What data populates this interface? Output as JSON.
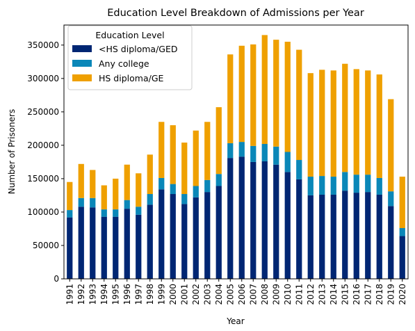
{
  "chart_data": {
    "type": "bar",
    "stacked": true,
    "title": "Education Level Breakdown of Admissions per Year",
    "xlabel": "Year",
    "ylabel": "Number of Prisoners",
    "ylim": [
      0,
      380000
    ],
    "yticks": [
      0,
      50000,
      100000,
      150000,
      200000,
      250000,
      300000,
      350000
    ],
    "legend_title": "Education Level",
    "legend_position": "top-left",
    "categories": [
      "1991",
      "1992",
      "1993",
      "1994",
      "1995",
      "1996",
      "1997",
      "1998",
      "1999",
      "2000",
      "2001",
      "2002",
      "2003",
      "2004",
      "2005",
      "2006",
      "2007",
      "2008",
      "2009",
      "2010",
      "2011",
      "2012",
      "2013",
      "2014",
      "2015",
      "2016",
      "2017",
      "2018",
      "2019",
      "2020"
    ],
    "series": [
      {
        "name": "<HS diploma/GED",
        "color": "#002673",
        "values": [
          92000,
          108000,
          107000,
          93000,
          93000,
          105000,
          96000,
          111000,
          134000,
          127000,
          112000,
          122000,
          130000,
          139000,
          181000,
          183000,
          175000,
          176000,
          171000,
          160000,
          149000,
          125000,
          126000,
          126000,
          132000,
          129000,
          130000,
          126000,
          109000,
          64000
        ]
      },
      {
        "name": "Any college",
        "color": "#0a87b8",
        "values": [
          11000,
          13000,
          14000,
          11000,
          11000,
          13000,
          12000,
          16000,
          17000,
          15000,
          15000,
          17000,
          18000,
          18000,
          22000,
          22000,
          24000,
          26000,
          27000,
          30000,
          29000,
          28000,
          28000,
          27000,
          28000,
          27000,
          26000,
          25000,
          22000,
          12000
        ]
      },
      {
        "name": "HS diploma/GE",
        "color": "#efa000",
        "values": [
          42000,
          51000,
          42000,
          36000,
          46000,
          53000,
          50000,
          59000,
          84000,
          88000,
          77000,
          83000,
          87000,
          100000,
          133000,
          144000,
          152000,
          163000,
          160000,
          165000,
          165000,
          155000,
          159000,
          159000,
          162000,
          158000,
          156000,
          155000,
          138000,
          77000
        ]
      }
    ]
  }
}
